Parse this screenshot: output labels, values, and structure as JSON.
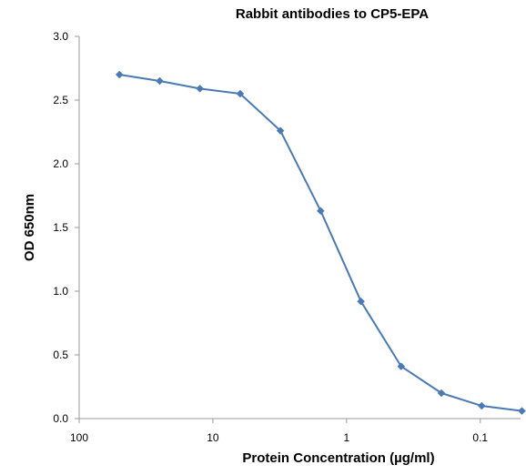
{
  "chart_data": {
    "type": "line",
    "title": "Rabbit antibodies to CP5-EPA",
    "xlabel": "Protein Concentration (µg/ml)",
    "ylabel": "OD 650nm",
    "x_scale": "log",
    "x_reversed": true,
    "xlim": [
      100,
      0.05
    ],
    "ylim": [
      0,
      3.0
    ],
    "x_ticks": [
      100,
      10,
      1,
      0.1
    ],
    "x_tick_labels": [
      "100",
      "10",
      "1",
      "0.1"
    ],
    "y_ticks": [
      0,
      0.5,
      1.0,
      1.5,
      2.0,
      2.5,
      3.0
    ],
    "y_tick_labels": [
      "0.0",
      "0.5",
      "1.0",
      "1.5",
      "2.0",
      "2.5",
      "3.0"
    ],
    "grid": false,
    "legend": "none",
    "series": [
      {
        "color": "#4a7ab5",
        "marker": "diamond",
        "x": [
          50,
          25,
          12.5,
          6.25,
          3.125,
          1.5625,
          0.78125,
          0.390625,
          0.1953125,
          0.09765625,
          0.048828125
        ],
        "y": [
          2.7,
          2.65,
          2.59,
          2.55,
          2.26,
          1.63,
          0.92,
          0.41,
          0.2,
          0.1,
          0.06
        ]
      }
    ]
  }
}
